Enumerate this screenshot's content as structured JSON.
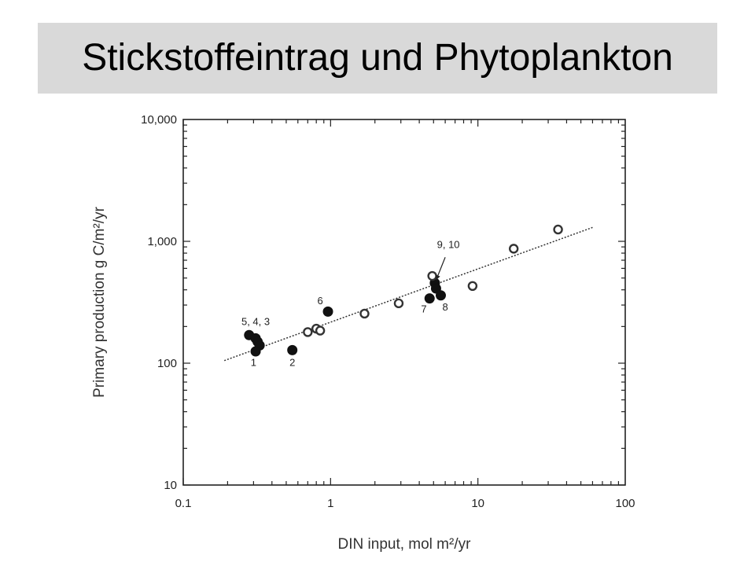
{
  "title": "Stickstoffeintrag und Phytoplankton",
  "chart_data": {
    "type": "scatter",
    "xlabel": "DIN input, mol m²/yr",
    "ylabel": "Primary production g C/m²/yr",
    "x_scale": "log",
    "y_scale": "log",
    "xlim": [
      0.1,
      100
    ],
    "ylim": [
      10,
      10000
    ],
    "x_ticks": [
      {
        "value": 0.1,
        "label": "0.1"
      },
      {
        "value": 1,
        "label": "1"
      },
      {
        "value": 10,
        "label": "10"
      },
      {
        "value": 100,
        "label": "100"
      }
    ],
    "y_ticks": [
      {
        "value": 10,
        "label": "10"
      },
      {
        "value": 100,
        "label": "100"
      },
      {
        "value": 1000,
        "label": "1,000"
      },
      {
        "value": 10000,
        "label": "10,000"
      }
    ],
    "grid": false,
    "series": [
      {
        "marker": "filled",
        "points": [
          {
            "x": 0.28,
            "y": 170
          },
          {
            "x": 0.31,
            "y": 160
          },
          {
            "x": 0.32,
            "y": 150
          },
          {
            "x": 0.33,
            "y": 140
          },
          {
            "x": 0.31,
            "y": 125
          },
          {
            "x": 0.55,
            "y": 128
          },
          {
            "x": 0.96,
            "y": 265
          },
          {
            "x": 4.7,
            "y": 340
          },
          {
            "x": 5.1,
            "y": 455
          },
          {
            "x": 5.2,
            "y": 410
          },
          {
            "x": 5.6,
            "y": 360
          }
        ]
      },
      {
        "marker": "open",
        "points": [
          {
            "x": 0.7,
            "y": 180
          },
          {
            "x": 0.8,
            "y": 192
          },
          {
            "x": 0.85,
            "y": 185
          },
          {
            "x": 1.7,
            "y": 255
          },
          {
            "x": 2.9,
            "y": 310
          },
          {
            "x": 4.9,
            "y": 520
          },
          {
            "x": 9.2,
            "y": 430
          },
          {
            "x": 17.5,
            "y": 870
          },
          {
            "x": 35,
            "y": 1250
          }
        ]
      }
    ],
    "fit_line": {
      "style": "dotted",
      "from": {
        "x": 0.19,
        "y": 105
      },
      "to": {
        "x": 60,
        "y": 1300
      }
    },
    "annotations": [
      {
        "text": "5, 4, 3",
        "x": 0.31,
        "y": 205
      },
      {
        "text": "1",
        "x": 0.3,
        "y": 95
      },
      {
        "text": "2",
        "x": 0.55,
        "y": 95
      },
      {
        "text": "6",
        "x": 0.85,
        "y": 305
      },
      {
        "text": "7",
        "x": 4.3,
        "y": 260
      },
      {
        "text": "8",
        "x": 6.0,
        "y": 270
      },
      {
        "text": "9, 10",
        "x": 6.3,
        "y": 880
      }
    ],
    "arrow": {
      "from": {
        "x": 6.0,
        "y": 740
      },
      "to": {
        "x": 5.2,
        "y": 480
      }
    }
  }
}
